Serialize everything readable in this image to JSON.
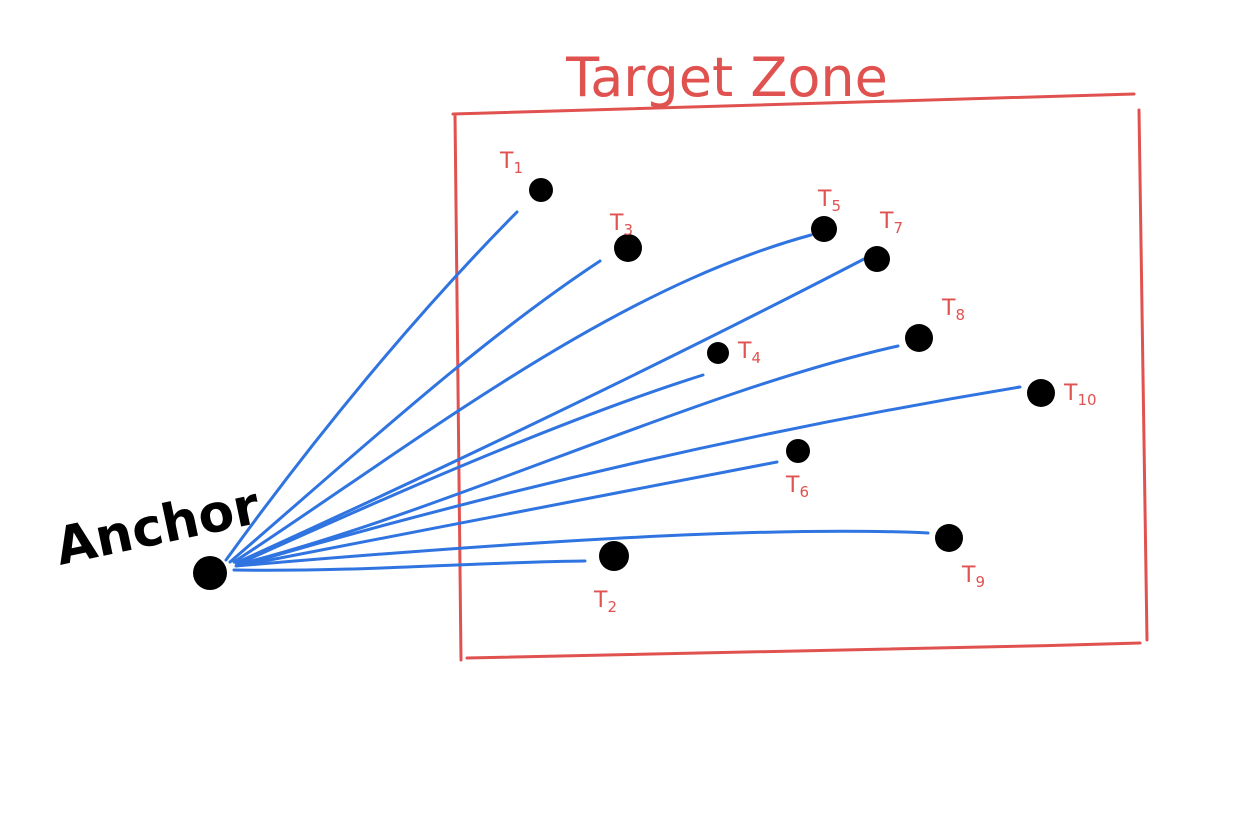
{
  "diagram": {
    "title": "Target Zone",
    "anchor": {
      "label": "Anchor"
    },
    "targets": [
      {
        "id": "T1",
        "letter": "T",
        "sub": "1"
      },
      {
        "id": "T2",
        "letter": "T",
        "sub": "2"
      },
      {
        "id": "T3",
        "letter": "T",
        "sub": "3"
      },
      {
        "id": "T4",
        "letter": "T",
        "sub": "4"
      },
      {
        "id": "T5",
        "letter": "T",
        "sub": "5"
      },
      {
        "id": "T6",
        "letter": "T",
        "sub": "6"
      },
      {
        "id": "T7",
        "letter": "T",
        "sub": "7"
      },
      {
        "id": "T8",
        "letter": "T",
        "sub": "8"
      },
      {
        "id": "T9",
        "letter": "T",
        "sub": "9"
      },
      {
        "id": "T10",
        "letter": "T",
        "sub": "10"
      }
    ],
    "colors": {
      "zone": "#e0524f",
      "links": "#2f74e0",
      "nodes": "#000000",
      "labels": "#e0524f",
      "anchor_text": "#000000"
    }
  }
}
